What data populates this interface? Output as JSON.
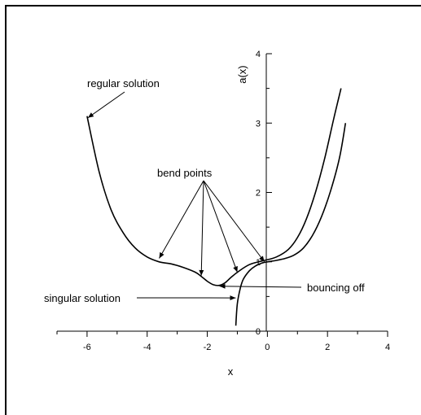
{
  "chart_data": {
    "type": "line",
    "title": "",
    "xlabel": "x",
    "ylabel": "a(x)",
    "xlim": [
      -7,
      4
    ],
    "ylim": [
      0,
      4
    ],
    "grid": false,
    "x_ticks": [
      -6,
      -4,
      -2,
      0,
      2,
      4
    ],
    "x_tick_labels": [
      "-6",
      "-4",
      "-2",
      "0",
      "2",
      "4"
    ],
    "y_ticks": [
      0,
      1,
      2,
      3,
      4
    ],
    "y_tick_labels": [
      "0",
      "1",
      "2",
      "3",
      "4"
    ],
    "series": [
      {
        "x": [
          -6.0,
          -5.6,
          -5.2,
          -4.8,
          -4.4,
          -4.0,
          -3.6,
          -3.2,
          -2.8,
          -2.4,
          -2.2,
          -2.0,
          -1.8,
          -1.6,
          -1.4,
          -1.2,
          -0.9,
          -0.6,
          -0.3,
          -0.1,
          0.3,
          0.7,
          1.0,
          1.3,
          1.6,
          1.9,
          2.2,
          2.45
        ],
        "y": [
          3.1,
          2.3,
          1.75,
          1.42,
          1.2,
          1.07,
          1.0,
          0.97,
          0.92,
          0.85,
          0.79,
          0.72,
          0.67,
          0.66,
          0.7,
          0.78,
          0.88,
          0.96,
          1.0,
          1.02,
          1.07,
          1.18,
          1.35,
          1.62,
          2.0,
          2.48,
          3.05,
          3.5
        ]
      },
      {
        "x": [
          -1.05,
          -1.0,
          -0.9,
          -0.8,
          -0.6,
          -0.4,
          -0.2,
          0.0,
          0.3,
          0.6,
          0.9,
          1.2,
          1.5,
          1.8,
          2.1,
          2.4,
          2.6
        ],
        "y": [
          0.08,
          0.4,
          0.62,
          0.75,
          0.87,
          0.94,
          0.98,
          1.0,
          1.02,
          1.05,
          1.1,
          1.2,
          1.38,
          1.65,
          2.02,
          2.5,
          3.0
        ]
      }
    ],
    "annotations": [
      {
        "text": "regular solution",
        "point": [
          -6.0,
          3.1
        ]
      },
      {
        "text": "bend points",
        "points": [
          [
            -3.6,
            1.05
          ],
          [
            -2.2,
            0.8
          ],
          [
            -1.0,
            0.85
          ],
          [
            -0.1,
            1.0
          ]
        ]
      },
      {
        "text": "bouncing off",
        "point": [
          -1.7,
          0.66
        ]
      },
      {
        "text": "singular solution",
        "point": [
          -1.0,
          0.48
        ]
      }
    ]
  }
}
